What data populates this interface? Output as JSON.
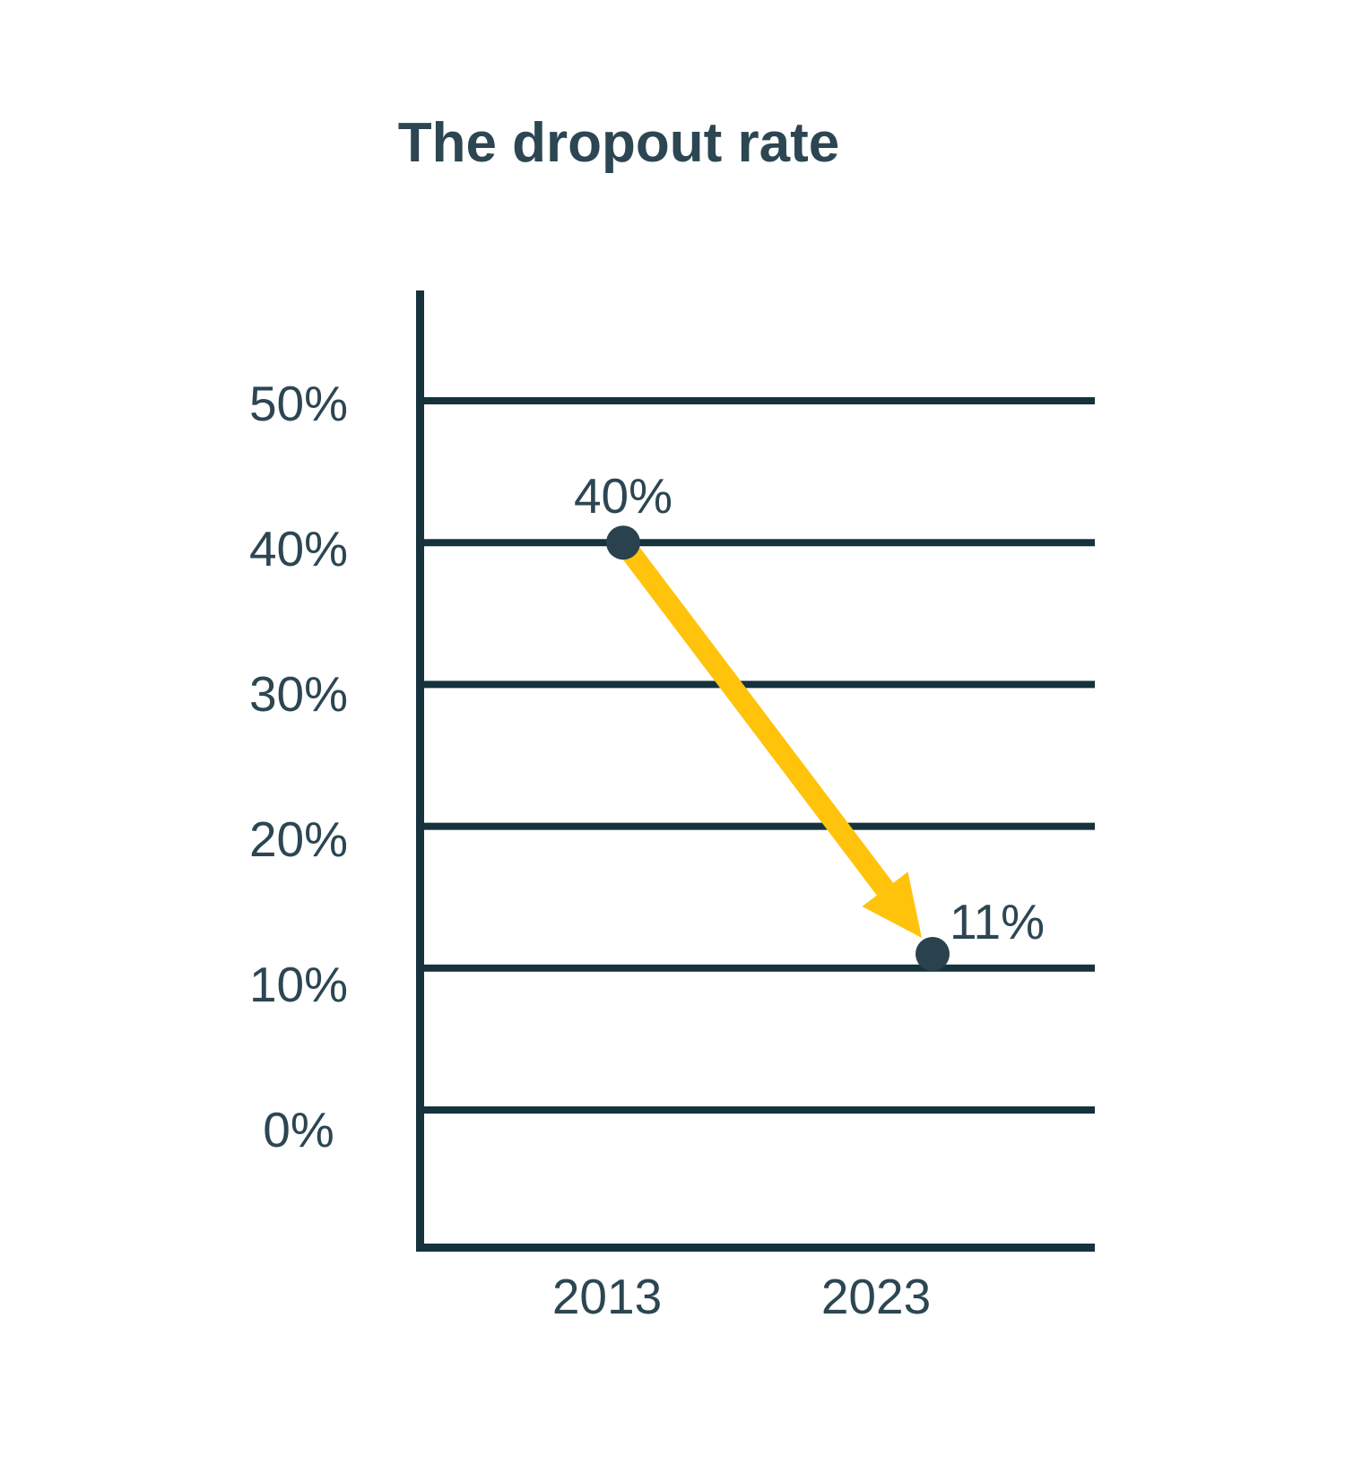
{
  "chart_data": {
    "type": "line",
    "title": "The dropout rate",
    "categories": [
      "2013",
      "2023"
    ],
    "values": [
      40,
      11
    ],
    "point_labels": [
      "40%",
      "11%"
    ],
    "yticks": [
      {
        "value": 50,
        "label": "50%"
      },
      {
        "value": 40,
        "label": "40%"
      },
      {
        "value": 30,
        "label": "30%"
      },
      {
        "value": 20,
        "label": "20%"
      },
      {
        "value": 10,
        "label": "10%"
      },
      {
        "value": 0,
        "label": "0%"
      }
    ],
    "ylim": [
      0,
      55
    ],
    "grid": "horizontal-only",
    "legend": "none",
    "annotation": {
      "type": "arrow",
      "from": {
        "category": "2013",
        "value": 40
      },
      "to": {
        "category": "2023",
        "value": 11
      },
      "meaning": "decline from 40% to 11%"
    },
    "colors": {
      "text": "#2c4652",
      "line": "#15323d",
      "dot": "#2a424d",
      "arrow": "#ffc30b",
      "background": "#ffffff"
    }
  }
}
